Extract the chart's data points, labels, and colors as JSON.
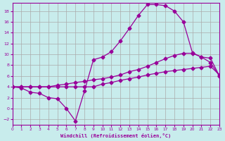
{
  "xlabel": "Windchill (Refroidissement éolien,°C)",
  "background_color": "#c8ecec",
  "line_color": "#990099",
  "grid_color": "#aaaaaa",
  "xlim": [
    0,
    23
  ],
  "ylim": [
    -3,
    19.5
  ],
  "xticks": [
    0,
    1,
    2,
    3,
    4,
    5,
    6,
    7,
    8,
    9,
    10,
    11,
    12,
    13,
    14,
    15,
    16,
    17,
    18,
    19,
    20,
    21,
    22,
    23
  ],
  "yticks": [
    -2,
    0,
    2,
    4,
    6,
    8,
    10,
    12,
    14,
    16,
    18
  ],
  "line1_x": [
    0,
    1,
    2,
    3,
    4,
    5,
    6,
    7,
    8,
    9,
    10,
    11,
    12,
    13,
    14,
    15,
    16,
    17,
    18,
    19,
    20,
    21,
    22,
    23
  ],
  "line1_y": [
    4,
    3.8,
    3.0,
    2.8,
    2.0,
    1.8,
    0.0,
    -2.3,
    3.2,
    9.0,
    9.5,
    10.5,
    12.5,
    14.8,
    17.2,
    19.2,
    19.2,
    19.0,
    18.0,
    16.0,
    10.3,
    9.5,
    9.3,
    6.0
  ],
  "line2_x": [
    0,
    1,
    2,
    3,
    4,
    5,
    6,
    7,
    8,
    9,
    10,
    11,
    12,
    13,
    14,
    15,
    16,
    17,
    18,
    19,
    20,
    21,
    22,
    23
  ],
  "line2_y": [
    4,
    4,
    4,
    4,
    4,
    4.3,
    4.5,
    4.8,
    5.0,
    5.3,
    5.5,
    5.8,
    6.2,
    6.8,
    7.2,
    7.8,
    8.5,
    9.2,
    9.8,
    10.2,
    10.2,
    9.5,
    8.5,
    6.0
  ],
  "line3_x": [
    0,
    1,
    2,
    3,
    4,
    5,
    6,
    7,
    8,
    9,
    10,
    11,
    12,
    13,
    14,
    15,
    16,
    17,
    18,
    19,
    20,
    21,
    22,
    23
  ],
  "line3_y": [
    4,
    4,
    4,
    4,
    4,
    4,
    4,
    4,
    4,
    4,
    4.5,
    4.8,
    5.2,
    5.5,
    5.8,
    6.2,
    6.5,
    6.8,
    7.0,
    7.2,
    7.4,
    7.6,
    7.8,
    6.2
  ]
}
